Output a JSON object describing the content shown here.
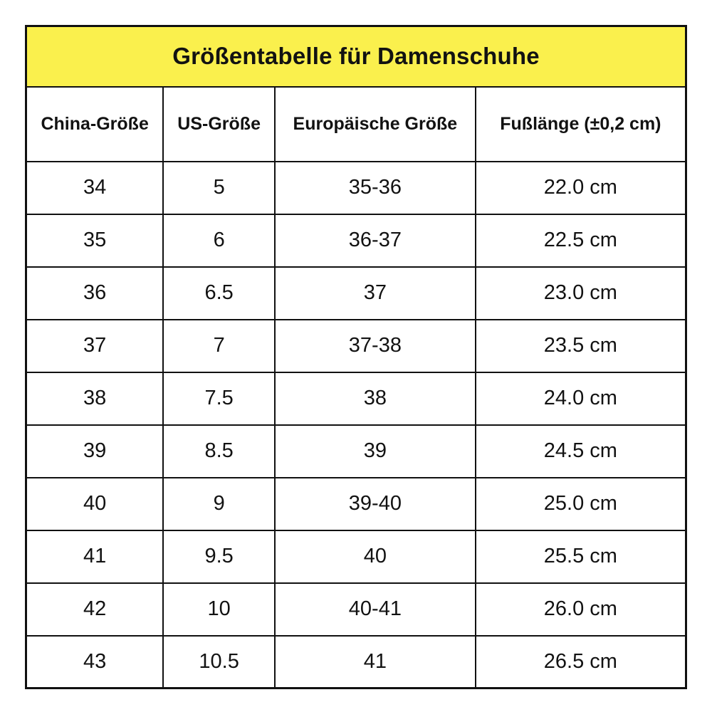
{
  "page": {
    "background": "#ffffff"
  },
  "table": {
    "title": "Größentabelle für Damenschuhe",
    "title_bg": "#FAF04D",
    "border_color": "#111111",
    "columns": [
      "China-Größe",
      "US-Größe",
      "Europäische Größe",
      "Fußlänge (±0,2 cm)"
    ],
    "rows": [
      [
        "34",
        "5",
        "35-36",
        "22.0 cm"
      ],
      [
        "35",
        "6",
        "36-37",
        "22.5 cm"
      ],
      [
        "36",
        "6.5",
        "37",
        "23.0 cm"
      ],
      [
        "37",
        "7",
        "37-38",
        "23.5 cm"
      ],
      [
        "38",
        "7.5",
        "38",
        "24.0 cm"
      ],
      [
        "39",
        "8.5",
        "39",
        "24.5 cm"
      ],
      [
        "40",
        "9",
        "39-40",
        "25.0 cm"
      ],
      [
        "41",
        "9.5",
        "40",
        "25.5 cm"
      ],
      [
        "42",
        "10",
        "40-41",
        "26.0 cm"
      ],
      [
        "43",
        "10.5",
        "41",
        "26.5 cm"
      ]
    ]
  }
}
